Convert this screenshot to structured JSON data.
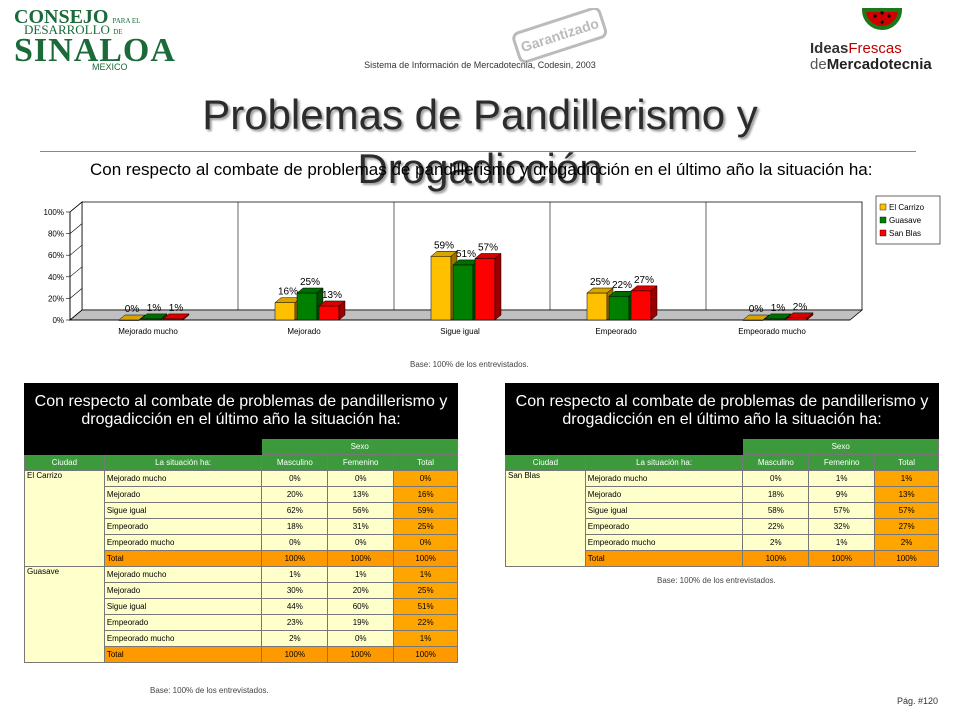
{
  "header": {
    "logo_line1": "CONSEJO",
    "logo_line1_small": "PARA EL",
    "logo_line2": "DESARROLLO",
    "logo_line2_small": "DE",
    "logo_line3": "SINALOA",
    "logo_line4": "MEXICO",
    "stamp_text": "Garantizado",
    "system_text": "Sistema de Información de Mercadotecnia, Codesin, 2003",
    "brand_line1_a": "Ideas",
    "brand_line1_b": "Frescas",
    "brand_line2_a": "de",
    "brand_line2_b": "Mercadotecnia",
    "title": "Problemas de Pandillerismo y Drogadicción"
  },
  "chart_data": {
    "type": "bar",
    "title": "Con respecto al combate de problemas de pandillerismo y drogadicción en el último año la situación ha:",
    "categories": [
      "Mejorado mucho",
      "Mejorado",
      "Sigue igual",
      "Empeorado",
      "Empeorado mucho"
    ],
    "series": [
      {
        "name": "El Carrizo",
        "values": [
          0,
          16,
          59,
          25,
          0
        ],
        "labels": [
          "0%",
          "16%",
          "59%",
          "25%",
          "0%"
        ],
        "color": "#ffc000"
      },
      {
        "name": "Guasave",
        "values": [
          1,
          25,
          51,
          22,
          1
        ],
        "labels": [
          "1%",
          "25%",
          "51%",
          "22%",
          "1%"
        ],
        "color": "#008000"
      },
      {
        "name": "San Blas",
        "values": [
          1,
          13,
          57,
          27,
          2
        ],
        "labels": [
          "1%",
          "13%",
          "57%",
          "27%",
          "2%"
        ],
        "color": "#ff0000"
      }
    ],
    "yticks": [
      "0%",
      "20%",
      "40%",
      "60%",
      "80%",
      "100%"
    ],
    "ylim": [
      0,
      100
    ],
    "legend_position": "right",
    "grid": "vertical"
  },
  "chart_base": "Base: 100% de los entrevistados.",
  "table_left": {
    "title": "Con respecto al combate de problemas de pandillerismo y drogadicción en el último año la situación ha:",
    "sexo": "Sexo",
    "headers": [
      "Ciudad",
      "La situación ha:",
      "Masculino",
      "Femenino",
      "Total"
    ],
    "groups": [
      {
        "city": "El Carrizo",
        "rows": [
          [
            "Mejorado mucho",
            "0%",
            "0%",
            "0%"
          ],
          [
            "Mejorado",
            "20%",
            "13%",
            "16%"
          ],
          [
            "Sigue igual",
            "62%",
            "56%",
            "59%"
          ],
          [
            "Empeorado",
            "18%",
            "31%",
            "25%"
          ],
          [
            "Empeorado mucho",
            "0%",
            "0%",
            "0%"
          ],
          [
            "Total",
            "100%",
            "100%",
            "100%"
          ]
        ]
      },
      {
        "city": "Guasave",
        "rows": [
          [
            "Mejorado mucho",
            "1%",
            "1%",
            "1%"
          ],
          [
            "Mejorado",
            "30%",
            "20%",
            "25%"
          ],
          [
            "Sigue igual",
            "44%",
            "60%",
            "51%"
          ],
          [
            "Empeorado",
            "23%",
            "19%",
            "22%"
          ],
          [
            "Empeorado mucho",
            "2%",
            "0%",
            "1%"
          ],
          [
            "Total",
            "100%",
            "100%",
            "100%"
          ]
        ]
      }
    ],
    "base": "Base: 100% de los entrevistados."
  },
  "table_right": {
    "title": "Con respecto al combate de problemas de pandillerismo y drogadicción en el último año la situación ha:",
    "sexo": "Sexo",
    "headers": [
      "Ciudad",
      "La situación ha:",
      "Masculino",
      "Femenino",
      "Total"
    ],
    "groups": [
      {
        "city": "San Blas",
        "rows": [
          [
            "Mejorado mucho",
            "0%",
            "1%",
            "1%"
          ],
          [
            "Mejorado",
            "18%",
            "9%",
            "13%"
          ],
          [
            "Sigue igual",
            "58%",
            "57%",
            "57%"
          ],
          [
            "Empeorado",
            "22%",
            "32%",
            "27%"
          ],
          [
            "Empeorado mucho",
            "2%",
            "1%",
            "2%"
          ],
          [
            "Total",
            "100%",
            "100%",
            "100%"
          ]
        ]
      }
    ],
    "base": "Base: 100% de los entrevistados."
  },
  "page_number": "Pág. #120"
}
